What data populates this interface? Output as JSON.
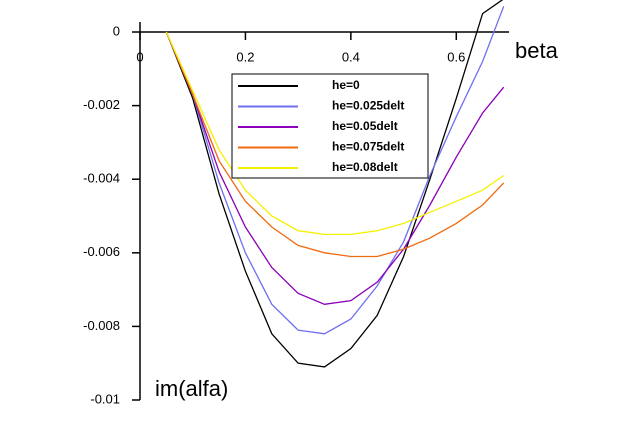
{
  "chart_data": {
    "type": "line",
    "xlabel": "beta",
    "ylabel": "im(alfa)",
    "x": [
      0.05,
      0.1,
      0.15,
      0.2,
      0.25,
      0.3,
      0.35,
      0.4,
      0.45,
      0.5,
      0.55,
      0.6,
      0.65,
      0.69
    ],
    "series": [
      {
        "name": "he=0",
        "color": "#000000",
        "values": [
          0,
          -0.0018,
          -0.0044,
          -0.0065,
          -0.0082,
          -0.009,
          -0.0091,
          -0.0086,
          -0.0077,
          -0.0061,
          -0.004,
          -0.0018,
          0.0005,
          0.0009
        ]
      },
      {
        "name": "he=0.025delt",
        "color": "#6f6fef",
        "values": [
          0,
          -0.0017,
          -0.0041,
          -0.006,
          -0.0074,
          -0.0081,
          -0.0082,
          -0.0078,
          -0.0069,
          -0.0057,
          -0.0039,
          -0.0023,
          -0.0008,
          0.0007
        ]
      },
      {
        "name": "he=0.05delt",
        "color": "#8b00b8",
        "values": [
          0,
          -0.0017,
          -0.0038,
          -0.0053,
          -0.0064,
          -0.0071,
          -0.0074,
          -0.0073,
          -0.0068,
          -0.0059,
          -0.0047,
          -0.0034,
          -0.0022,
          -0.0015
        ]
      },
      {
        "name": "he=0.075delt",
        "color": "#f06a10",
        "values": [
          0,
          -0.0017,
          -0.0035,
          -0.0046,
          -0.0053,
          -0.0058,
          -0.006,
          -0.0061,
          -0.0061,
          -0.0059,
          -0.0056,
          -0.0052,
          -0.0047,
          -0.0041
        ]
      },
      {
        "name": "he=0.08delt",
        "color": "#f5f000",
        "values": [
          0,
          -0.0016,
          -0.0032,
          -0.0043,
          -0.005,
          -0.0054,
          -0.0055,
          -0.0055,
          -0.0054,
          -0.0052,
          -0.0049,
          -0.0046,
          -0.0043,
          -0.0039
        ]
      }
    ],
    "xlim": [
      0,
      0.7
    ],
    "ylim": [
      -0.01,
      0.00087
    ],
    "xticks": [
      0,
      0.2,
      0.4,
      0.6
    ],
    "yticks": [
      0,
      -0.002,
      -0.004,
      -0.006,
      -0.008,
      -0.01
    ],
    "legend": "top"
  }
}
